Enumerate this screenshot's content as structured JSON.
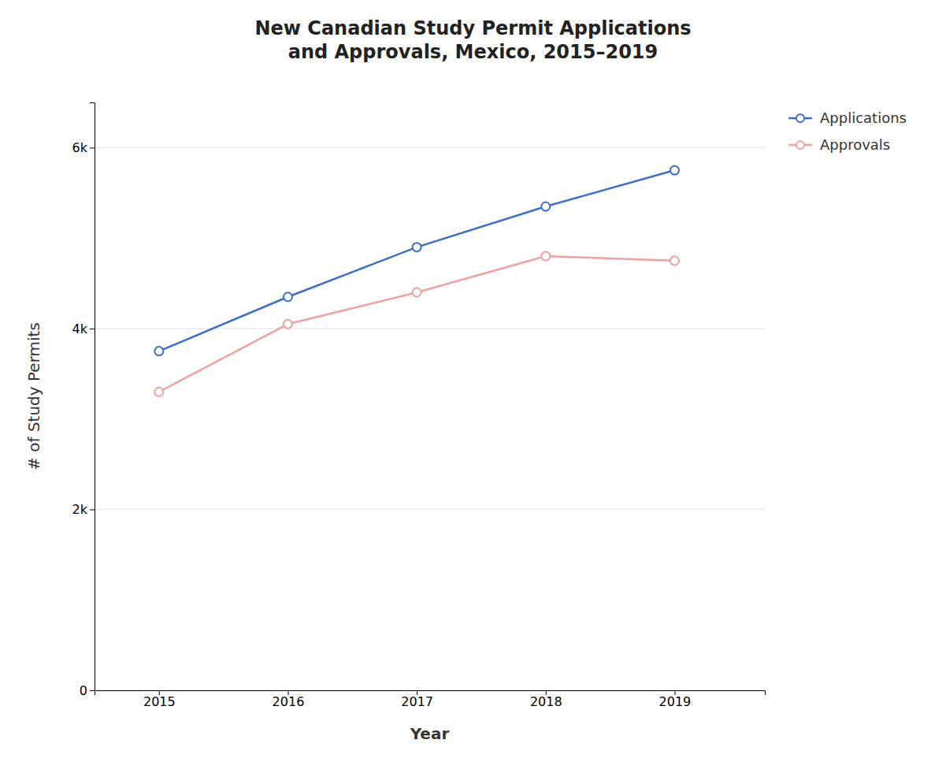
{
  "chart_data": {
    "type": "line",
    "title": "New Canadian Study Permit Applications\nand Approvals, Mexico, 2015–2019",
    "xlabel": "Year",
    "ylabel": "# of Study Permits",
    "x": [
      2015,
      2016,
      2017,
      2018,
      2019
    ],
    "series": [
      {
        "name": "Applications",
        "color": "#3B6ECC",
        "marker": "circle",
        "values": [
          3750,
          4350,
          4900,
          5350,
          5750
        ]
      },
      {
        "name": "Approvals",
        "color": "#F0A0A0",
        "marker": "circle",
        "values": [
          3300,
          4050,
          4400,
          4800,
          4750
        ]
      }
    ],
    "xlim": [
      2014.5,
      2019.7
    ],
    "xticks": [
      2015,
      2016,
      2017,
      2018,
      2019
    ],
    "ylim": [
      0,
      6500
    ],
    "yticks": [
      0,
      {
        "value": 2000,
        "label": "2k"
      },
      {
        "value": 4000,
        "label": "4k"
      },
      {
        "value": 6000,
        "label": "6k"
      }
    ],
    "grid": true,
    "legend": "right"
  }
}
